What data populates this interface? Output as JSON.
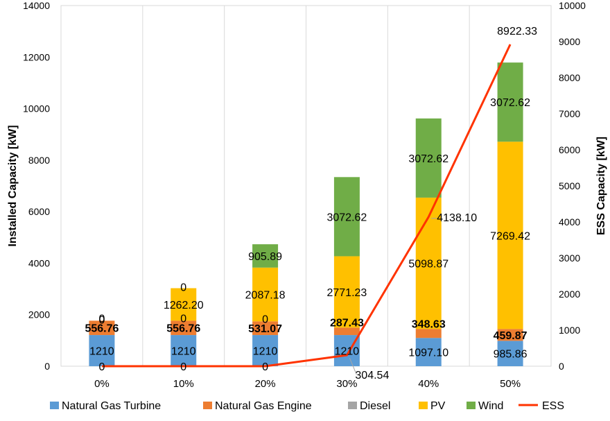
{
  "chart_data": {
    "type": "bar",
    "stacked": true,
    "categories": [
      "0%",
      "10%",
      "20%",
      "30%",
      "40%",
      "50%"
    ],
    "ylabel": "Installed Capacity [kW]",
    "y2label": "ESS Capacity [kW]",
    "ylim": [
      0,
      14000
    ],
    "yticks": [
      "0",
      "2000",
      "4000",
      "6000",
      "8000",
      "10000",
      "12000",
      "14000"
    ],
    "y2lim": [
      0,
      10000
    ],
    "y2ticks": [
      "0",
      "1000",
      "2000",
      "3000",
      "4000",
      "5000",
      "6000",
      "7000",
      "8000",
      "9000",
      "10000"
    ],
    "grid": "vertical",
    "legend_position": "bottom",
    "series": [
      {
        "name": "Natural Gas Turbine",
        "color": "#5b9bd5",
        "kind": "bar",
        "values": [
          1210,
          1210,
          1210,
          1210,
          1097.1,
          985.86
        ],
        "labels": [
          "1210",
          "1210",
          "1210",
          "1210",
          "1097.10",
          "985.86"
        ]
      },
      {
        "name": "Natural Gas Engine",
        "color": "#ed7d31",
        "kind": "bar",
        "values": [
          556.76,
          556.76,
          531.07,
          287.43,
          348.63,
          459.87
        ],
        "labels": [
          "556.76",
          "556.76",
          "531.07",
          "287.43",
          "348.63",
          "459.87"
        ]
      },
      {
        "name": "Diesel",
        "color": "#a5a5a5",
        "kind": "bar",
        "values": [
          0,
          0,
          0,
          0,
          0,
          0
        ],
        "labels": [
          "0",
          "0",
          "0",
          "",
          "",
          ""
        ]
      },
      {
        "name": "PV",
        "color": "#ffc000",
        "kind": "bar",
        "values": [
          0,
          1262.2,
          2087.18,
          2771.23,
          5098.87,
          7269.42
        ],
        "labels": [
          "",
          "1262.20",
          "2087.18",
          "2771.23",
          "5098.87",
          "7269.42"
        ]
      },
      {
        "name": "Wind",
        "color": "#70ad47",
        "kind": "bar",
        "values": [
          0,
          0,
          905.89,
          3072.62,
          3072.62,
          3072.62
        ],
        "labels": [
          "0",
          "0",
          "905.89",
          "3072.62",
          "3072.62",
          "3072.62"
        ]
      },
      {
        "name": "ESS",
        "color": "#ff3300",
        "kind": "line",
        "axis": "right",
        "values": [
          0,
          0,
          0,
          304.54,
          4138.1,
          8922.33
        ],
        "labels": [
          "0",
          "0",
          "0",
          "304.54",
          "4138.10",
          "8922.33"
        ]
      }
    ]
  }
}
